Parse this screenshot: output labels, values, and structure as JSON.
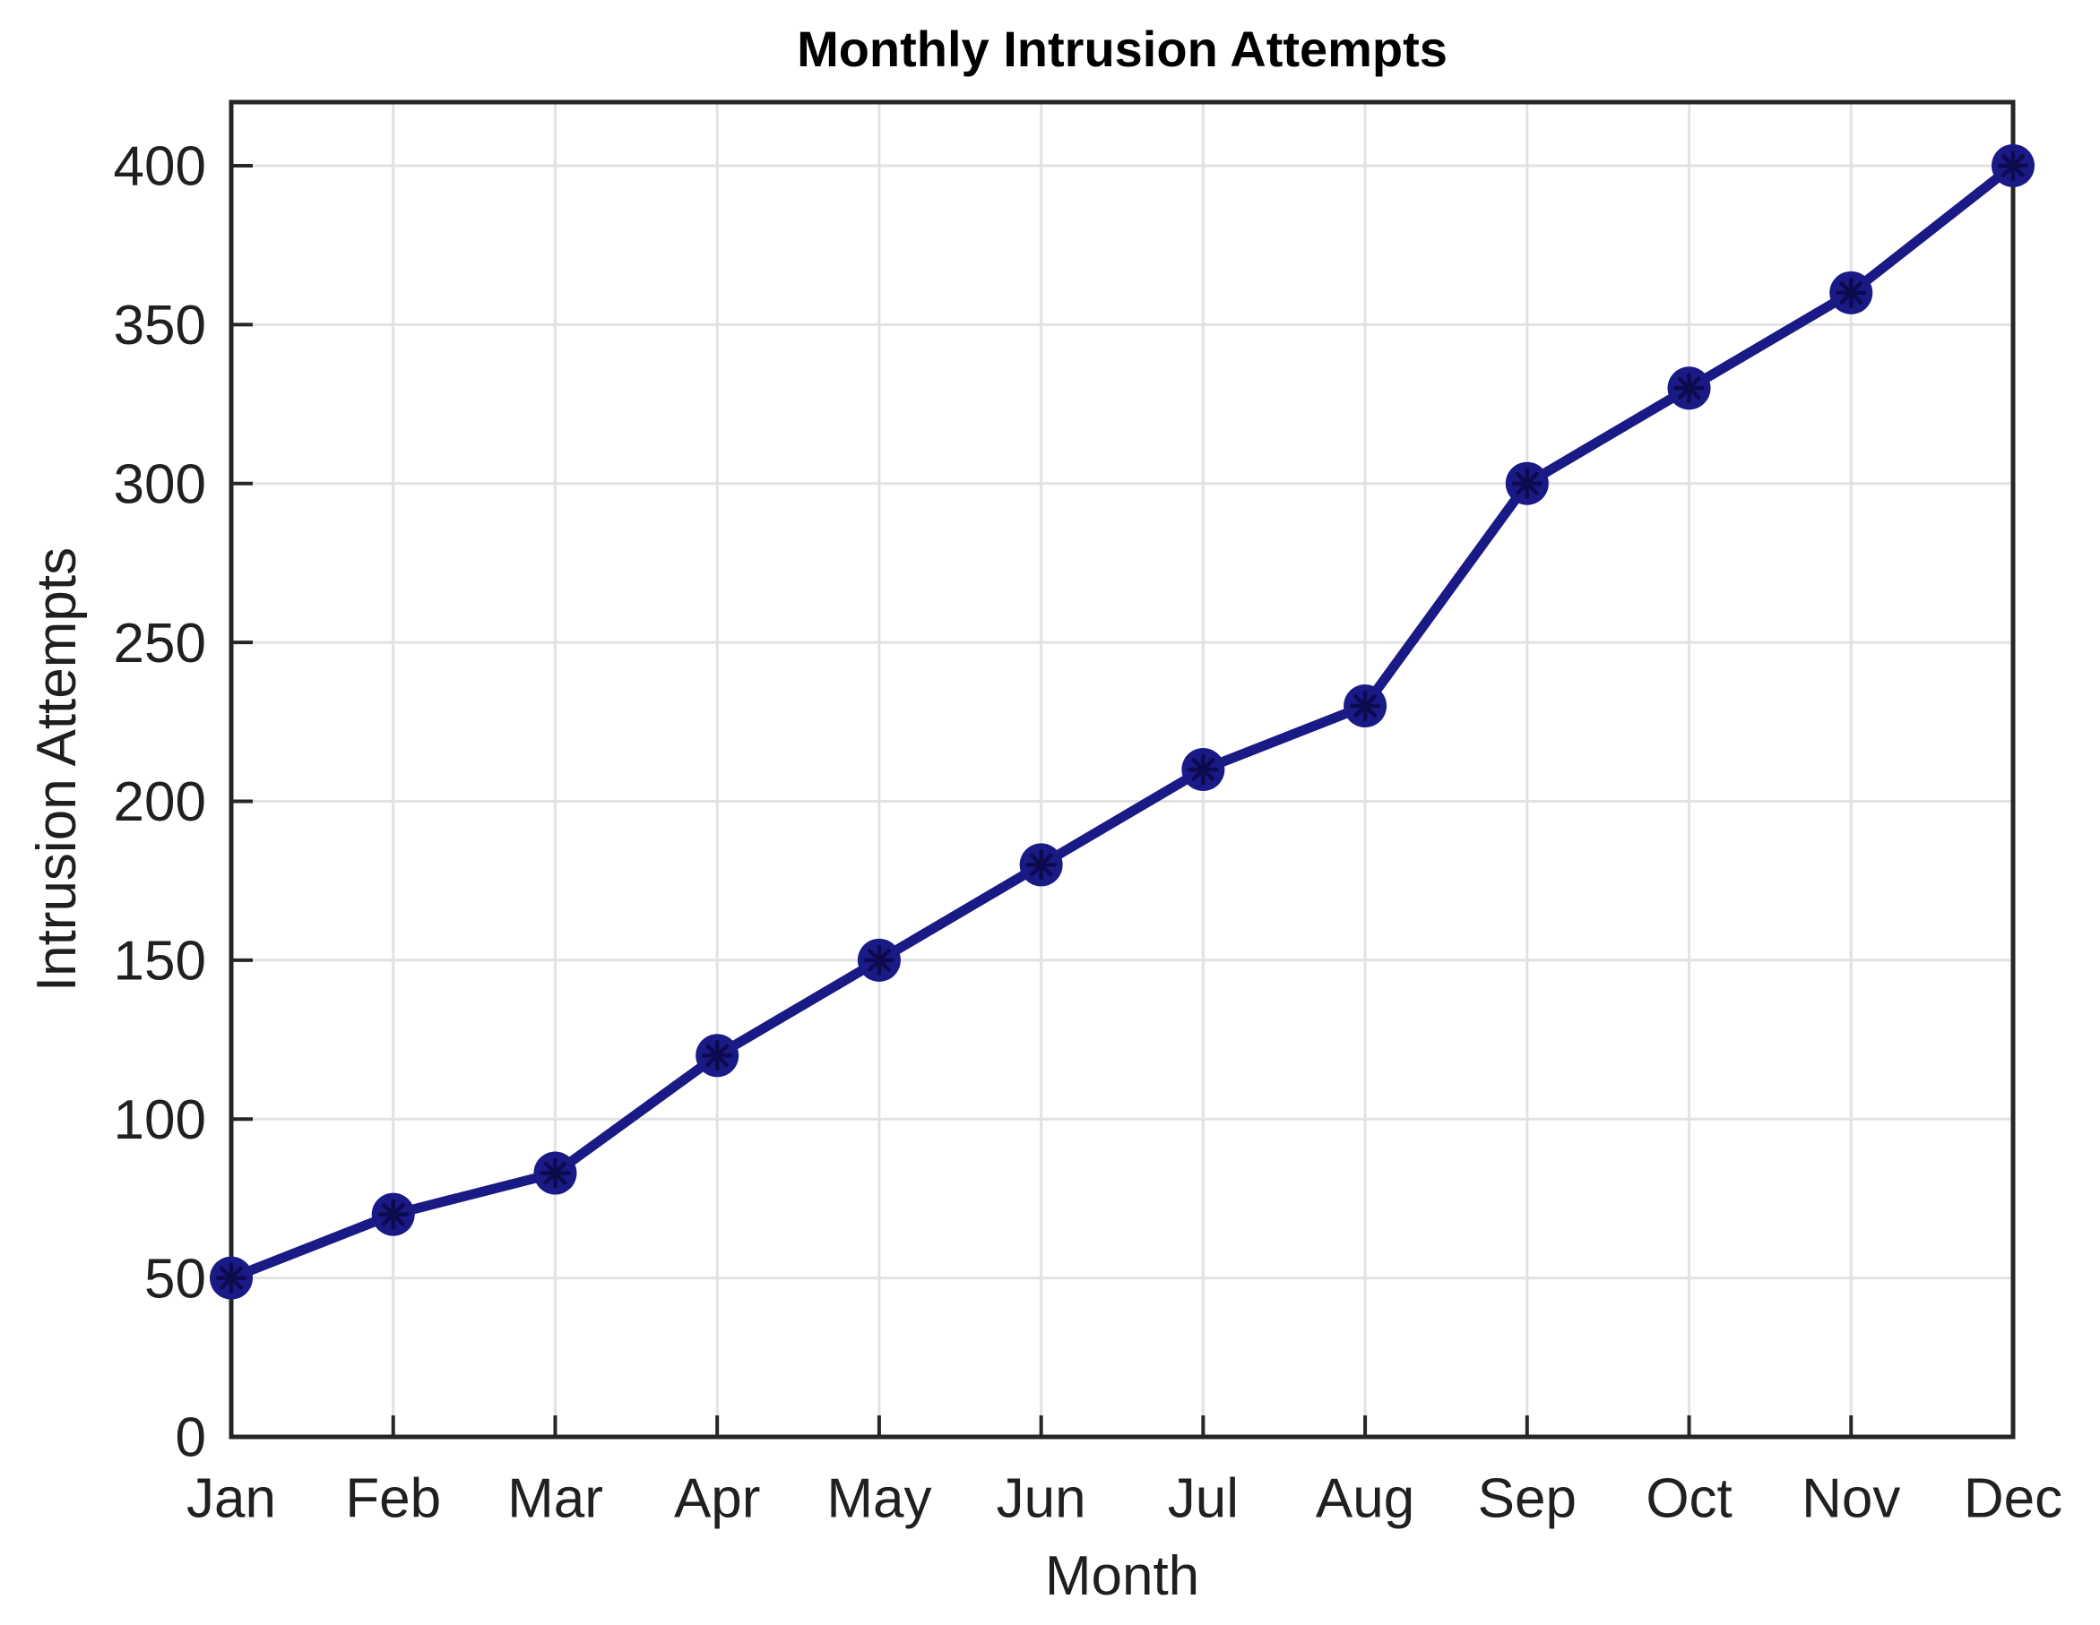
{
  "chart_data": {
    "type": "line",
    "title": "Monthly Intrusion Attempts",
    "xlabel": "Month",
    "ylabel": "Intrusion Attempts",
    "categories": [
      "Jan",
      "Feb",
      "Mar",
      "Apr",
      "May",
      "Jun",
      "Jul",
      "Aug",
      "Sep",
      "Oct",
      "Nov",
      "Dec"
    ],
    "series": [
      {
        "name": "Intrusion Attempts",
        "values": [
          50,
          70,
          83,
          120,
          150,
          180,
          210,
          230,
          300,
          330,
          360,
          400
        ]
      }
    ],
    "yticks": [
      0,
      50,
      100,
      150,
      200,
      250,
      300,
      350,
      400
    ],
    "ylim": [
      0,
      420
    ],
    "grid": true,
    "legend_position": "none",
    "colors": {
      "line": "#1a1a87",
      "marker_fill": "#1a1a87",
      "marker_asterisk": "#0b0b4e",
      "grid": "#e2e2e2",
      "axis": "#262626",
      "tick_text": "#202020",
      "title_text": "#000000"
    }
  }
}
